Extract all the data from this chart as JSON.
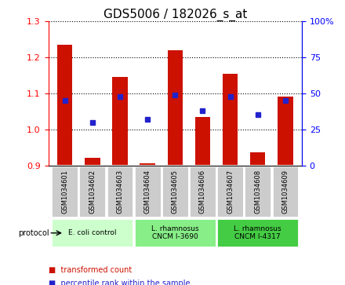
{
  "title": "GDS5006 / 182026_s_at",
  "samples": [
    "GSM1034601",
    "GSM1034602",
    "GSM1034603",
    "GSM1034604",
    "GSM1034605",
    "GSM1034606",
    "GSM1034607",
    "GSM1034608",
    "GSM1034609"
  ],
  "bar_tops": [
    1.235,
    0.92,
    1.145,
    0.905,
    1.22,
    1.035,
    1.155,
    0.935,
    1.09
  ],
  "bar_bottom": 0.9,
  "blue_pct": [
    45,
    30,
    48,
    32,
    49,
    38,
    48,
    35,
    45
  ],
  "ylim_left": [
    0.9,
    1.3
  ],
  "ylim_right": [
    0,
    100
  ],
  "yticks_left": [
    0.9,
    1.0,
    1.1,
    1.2,
    1.3
  ],
  "yticks_right": [
    0,
    25,
    50,
    75,
    100
  ],
  "ytick_labels_right": [
    "0",
    "25",
    "50",
    "75",
    "100%"
  ],
  "bar_color": "#cc1100",
  "blue_color": "#2222cc",
  "protocol_groups": [
    {
      "label": "E. coli control",
      "indices": [
        0,
        1,
        2
      ],
      "color": "#ccffcc"
    },
    {
      "label": "L. rhamnosus\nCNCM I-3690",
      "indices": [
        3,
        4,
        5
      ],
      "color": "#88ee88"
    },
    {
      "label": "L. rhamnosus\nCNCM I-4317",
      "indices": [
        6,
        7,
        8
      ],
      "color": "#44cc44"
    }
  ],
  "legend_items": [
    {
      "label": "transformed count",
      "color": "#cc1100"
    },
    {
      "label": "percentile rank within the sample",
      "color": "#2222cc"
    }
  ],
  "protocol_label": "protocol",
  "sample_bg_color": "#cccccc",
  "title_fontsize": 11,
  "tick_fontsize": 8,
  "bar_width": 0.55
}
